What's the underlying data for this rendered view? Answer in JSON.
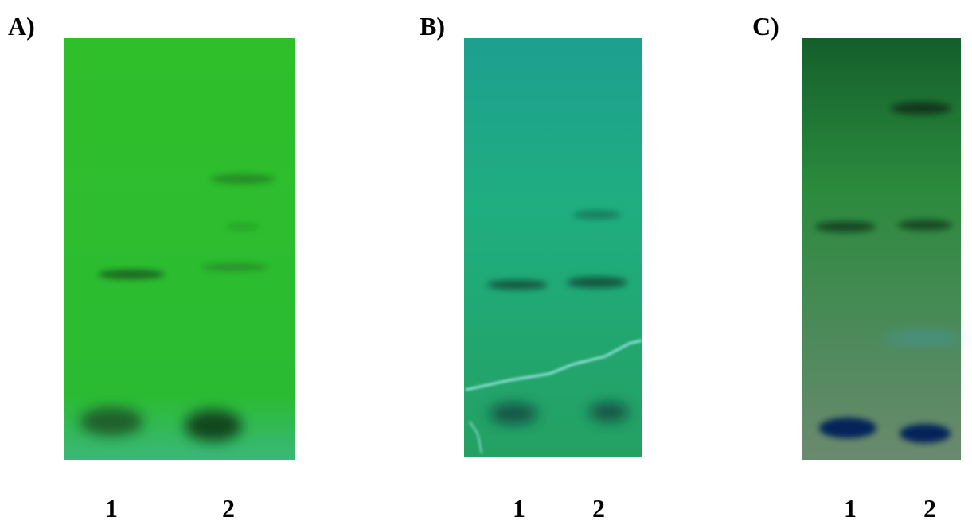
{
  "panels": [
    {
      "label": "A)",
      "lanes": [
        "1",
        "2"
      ]
    },
    {
      "label": "B)",
      "lanes": [
        "1",
        "2"
      ]
    },
    {
      "label": "C)",
      "lanes": [
        "1",
        "2"
      ]
    }
  ]
}
